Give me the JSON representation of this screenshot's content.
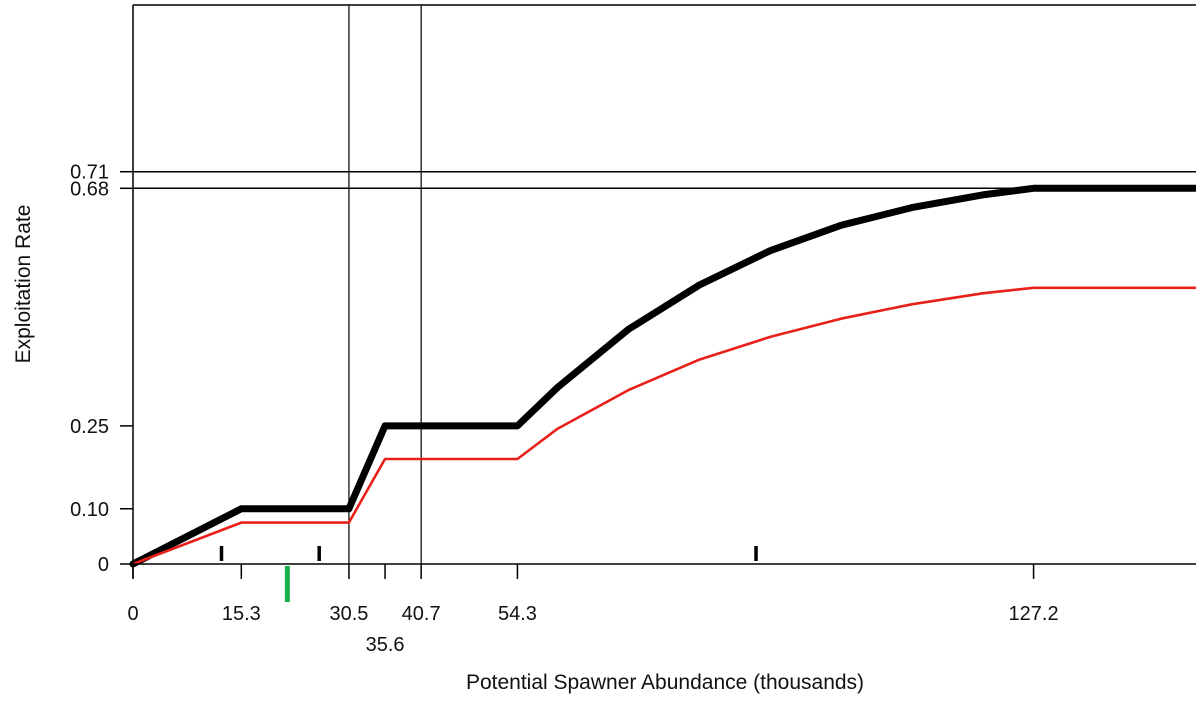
{
  "chart_data": {
    "type": "line",
    "xlabel": "Potential Spawner Abundance (thousands)",
    "ylabel": "Exploitation Rate",
    "xlim": [
      0,
      150
    ],
    "ylim": [
      0,
      1.1
    ],
    "x_ticks": [
      {
        "value": 0,
        "label": "0"
      },
      {
        "value": 15.3,
        "label": "15.3"
      },
      {
        "value": 30.5,
        "label": "30.5"
      },
      {
        "value": 35.6,
        "label": "35.6"
      },
      {
        "value": 40.7,
        "label": "40.7"
      },
      {
        "value": 54.3,
        "label": "54.3"
      },
      {
        "value": 127.2,
        "label": "127.2"
      }
    ],
    "y_ticks": [
      {
        "value": 0,
        "label": "0"
      },
      {
        "value": 0.1,
        "label": "0.10"
      },
      {
        "value": 0.25,
        "label": "0.25"
      },
      {
        "value": 0.68,
        "label": "0.68"
      },
      {
        "value": 0.71,
        "label": "0.71"
      }
    ],
    "reference_lines": {
      "vertical": [
        30.5,
        40.7
      ],
      "horizontal": [
        0.68,
        0.71
      ]
    },
    "series": [
      {
        "color": "#000000",
        "x": [
          0,
          15.3,
          30.5,
          35.6,
          54.3,
          60,
          70,
          80,
          90,
          100,
          110,
          120,
          127.2,
          150
        ],
        "values": [
          0,
          0.1,
          0.1,
          0.25,
          0.25,
          0.32,
          0.425,
          0.505,
          0.567,
          0.613,
          0.645,
          0.668,
          0.68,
          0.68
        ]
      },
      {
        "color": "#e8201a",
        "x": [
          0,
          15.3,
          30.5,
          35.6,
          54.3,
          60,
          70,
          80,
          90,
          100,
          110,
          120,
          127.2,
          150
        ],
        "values": [
          0,
          0.075,
          0.075,
          0.19,
          0.19,
          0.245,
          0.315,
          0.37,
          0.411,
          0.444,
          0.47,
          0.49,
          0.5,
          0.5
        ]
      }
    ],
    "markers": [
      {
        "x": 12.5,
        "color": "#000000"
      },
      {
        "x": 26.3,
        "color": "#000000"
      },
      {
        "x": 88,
        "color": "#000000"
      },
      {
        "x": 21.8,
        "color": "#18b04a"
      }
    ],
    "grid": false,
    "legend": "none"
  }
}
